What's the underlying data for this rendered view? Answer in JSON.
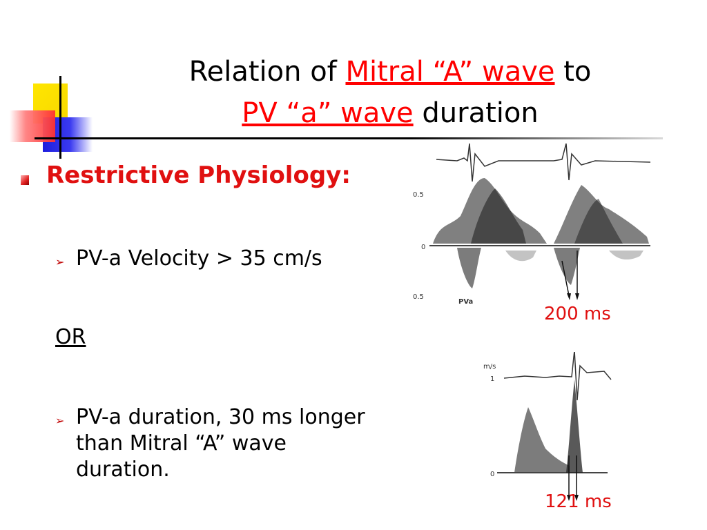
{
  "title": {
    "line1_prefix": "Relation of ",
    "line1_highlight": "Mitral “A” wave",
    "line1_suffix": " to",
    "line2_highlight": "PV “a” wave",
    "line2_suffix": " duration"
  },
  "heading": "Restrictive Physiology:",
  "bullets": [
    "PV-a Velocity > 35 cm/s",
    "PV-a duration, 30 ms longer than Mitral “A” wave duration."
  ],
  "separator": "OR",
  "figure_top": {
    "tick_upper": "0.5",
    "tick_zero": "0",
    "tick_lower": "0.5",
    "wave_label": "PVa",
    "duration_label": "200 ms"
  },
  "figure_bottom": {
    "unit": "m/s",
    "tick_one": "1",
    "tick_zero": "0",
    "duration_label": "121 ms"
  },
  "colors": {
    "accent_red": "#e01010",
    "title_red": "#ff0000"
  }
}
